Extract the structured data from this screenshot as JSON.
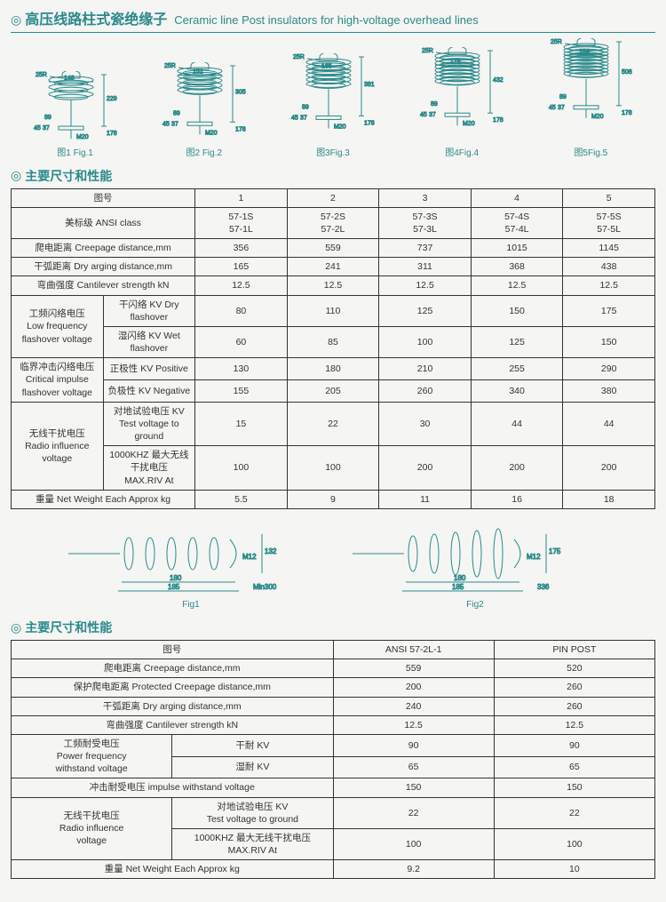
{
  "header": {
    "title_cn": "高压线路柱式瓷绝缘子",
    "title_en": "Ceramic line Post insulators for high-voltage overhead lines"
  },
  "section1_title": "主要尺寸和性能",
  "section2_title": "主要尺寸和性能",
  "colors": {
    "accent": "#2a8a8a",
    "line": "#333333"
  },
  "top_figs": [
    {
      "label": "图1 Fig.1",
      "h_total": 229,
      "body": 146,
      "width": 110,
      "disks": 3,
      "dim_h": "229",
      "dim_body": "146",
      "dim_r": "25R",
      "dim_bolt": "M20",
      "dim_tip": "178",
      "dim_base_w": "45",
      "dim_base_w2": "37",
      "dim_mid": "89"
    },
    {
      "label": "图2 Fig.2",
      "h_total": 305,
      "body": 152,
      "width": 110,
      "disks": 5,
      "dim_h": "305",
      "dim_body": "152",
      "dim_r": "25R",
      "dim_bolt": "M20",
      "dim_tip": "178",
      "dim_base_w": "45",
      "dim_base_w2": "37",
      "dim_mid": "89"
    },
    {
      "label": "图3Fig.3",
      "h_total": 381,
      "body": 165,
      "width": 115,
      "disks": 6,
      "dim_h": "381",
      "dim_body": "165",
      "dim_r": "25R",
      "dim_bolt": "M20",
      "dim_tip": "178",
      "dim_base_w": "45",
      "dim_base_w2": "37",
      "dim_mid": "89"
    },
    {
      "label": "图4Fig.4",
      "h_total": 432,
      "body": 178,
      "width": 118,
      "disks": 8,
      "dim_h": "432",
      "dim_body": "178",
      "dim_r": "25R",
      "dim_bolt": "M20",
      "dim_tip": "178",
      "dim_base_w": "45",
      "dim_base_w2": "37",
      "dim_mid": "89"
    },
    {
      "label": "图5Fig.5",
      "h_total": 508,
      "body": 184,
      "width": 120,
      "disks": 9,
      "dim_h": "508",
      "dim_body": "184",
      "dim_r": "25R",
      "dim_bolt": "M20",
      "dim_tip": "178",
      "dim_base_w": "45",
      "dim_base_w2": "37",
      "dim_mid": "89"
    }
  ],
  "table1": {
    "head_label": "图号",
    "head_cols": [
      "1",
      "2",
      "3",
      "4",
      "5"
    ],
    "ansi_label": "美标级 ANSI class",
    "ansi_vals": [
      "57-1S\n57-1L",
      "57-2S\n57-2L",
      "57-3S\n57-3L",
      "57-4S\n57-4L",
      "57-5S\n57-5L"
    ],
    "rows_simple": [
      {
        "label": "爬电距离 Creepage distance,mm",
        "vals": [
          "356",
          "559",
          "737",
          "1015",
          "1145"
        ]
      },
      {
        "label": "干弧距离  Dry arging  distance,mm",
        "vals": [
          "165",
          "241",
          "311",
          "368",
          "438"
        ]
      },
      {
        "label": "弯曲强度 Cantilever strength kN",
        "vals": [
          "12.5",
          "12.5",
          "12.5",
          "12.5",
          "12.5"
        ]
      }
    ],
    "group1": {
      "group_label": "工频闪络电压\nLow frequency\nflashover voltage",
      "rows": [
        {
          "label": "干闪络 KV  Dry flashover",
          "vals": [
            "80",
            "110",
            "125",
            "150",
            "175"
          ]
        },
        {
          "label": "湿闪络 KV  Wet flashover",
          "vals": [
            "60",
            "85",
            "100",
            "125",
            "150"
          ]
        }
      ]
    },
    "group2": {
      "group_label": "临界冲击闪络电压\nCritical impulse\nflashover voltage",
      "rows": [
        {
          "label": "正极性 KV  Positive",
          "vals": [
            "130",
            "180",
            "210",
            "255",
            "290"
          ]
        },
        {
          "label": "负极性 KV  Negative",
          "vals": [
            "155",
            "205",
            "260",
            "340",
            "380"
          ]
        }
      ]
    },
    "group3": {
      "group_label": "无线干扰电压\nRadio influence\nvoltage",
      "rows": [
        {
          "label": "对地试验电压 KV\nTest voltage to ground",
          "vals": [
            "15",
            "22",
            "30",
            "44",
            "44"
          ]
        },
        {
          "label": "1000KHZ 最大无线干扰电压\nMAX.RIV At",
          "vals": [
            "100",
            "100",
            "200",
            "200",
            "200"
          ]
        }
      ]
    },
    "weight_label": "重量 Net Weight Each Approx   kg",
    "weight_vals": [
      "5.5",
      "9",
      "11",
      "16",
      "18"
    ]
  },
  "mid_figs": [
    {
      "label": "Fig1",
      "len": 300,
      "body_len": 180,
      "outer": 185,
      "min": "Min300",
      "height": 132,
      "m": "M12"
    },
    {
      "label": "Fig2",
      "len": 336,
      "body_len": 180,
      "outer": 185,
      "min": "336",
      "height": 175,
      "m": "M12"
    }
  ],
  "table2": {
    "head_label": "图号",
    "head_cols": [
      "ANSI 57-2L-1",
      "PIN POST"
    ],
    "rows_simple": [
      {
        "label": "爬电距离 Creepage distance,mm",
        "vals": [
          "559",
          "520"
        ]
      },
      {
        "label": "保护爬电距离 Protected Creepage distance,mm",
        "vals": [
          "200",
          "260"
        ]
      },
      {
        "label": "干弧距离  Dry arging  distance,mm",
        "vals": [
          "240",
          "260"
        ]
      },
      {
        "label": "弯曲强度 Cantilever strength kN",
        "vals": [
          "12.5",
          "12.5"
        ]
      }
    ],
    "group1": {
      "group_label": "工频耐受电压\nPower frequency\nwithstand voltage",
      "rows": [
        {
          "label": "干耐 KV",
          "vals": [
            "90",
            "90"
          ]
        },
        {
          "label": "湿耐 KV",
          "vals": [
            "65",
            "65"
          ]
        }
      ]
    },
    "impulse": {
      "label": "冲击耐受电压   impulse   withstand voltage",
      "vals": [
        "150",
        "150"
      ]
    },
    "group3": {
      "group_label": "无线干扰电压\nRadio influence\nvoltage",
      "rows": [
        {
          "label": "对地试验电压 KV\nTest voltage to ground",
          "vals": [
            "22",
            "22"
          ]
        },
        {
          "label": "1000KHZ 最大无线干扰电压\nMAX.RIV At",
          "vals": [
            "100",
            "100"
          ]
        }
      ]
    },
    "weight_label": "重量 Net Weight Each Approx   kg",
    "weight_vals": [
      "9.2",
      "10"
    ]
  }
}
